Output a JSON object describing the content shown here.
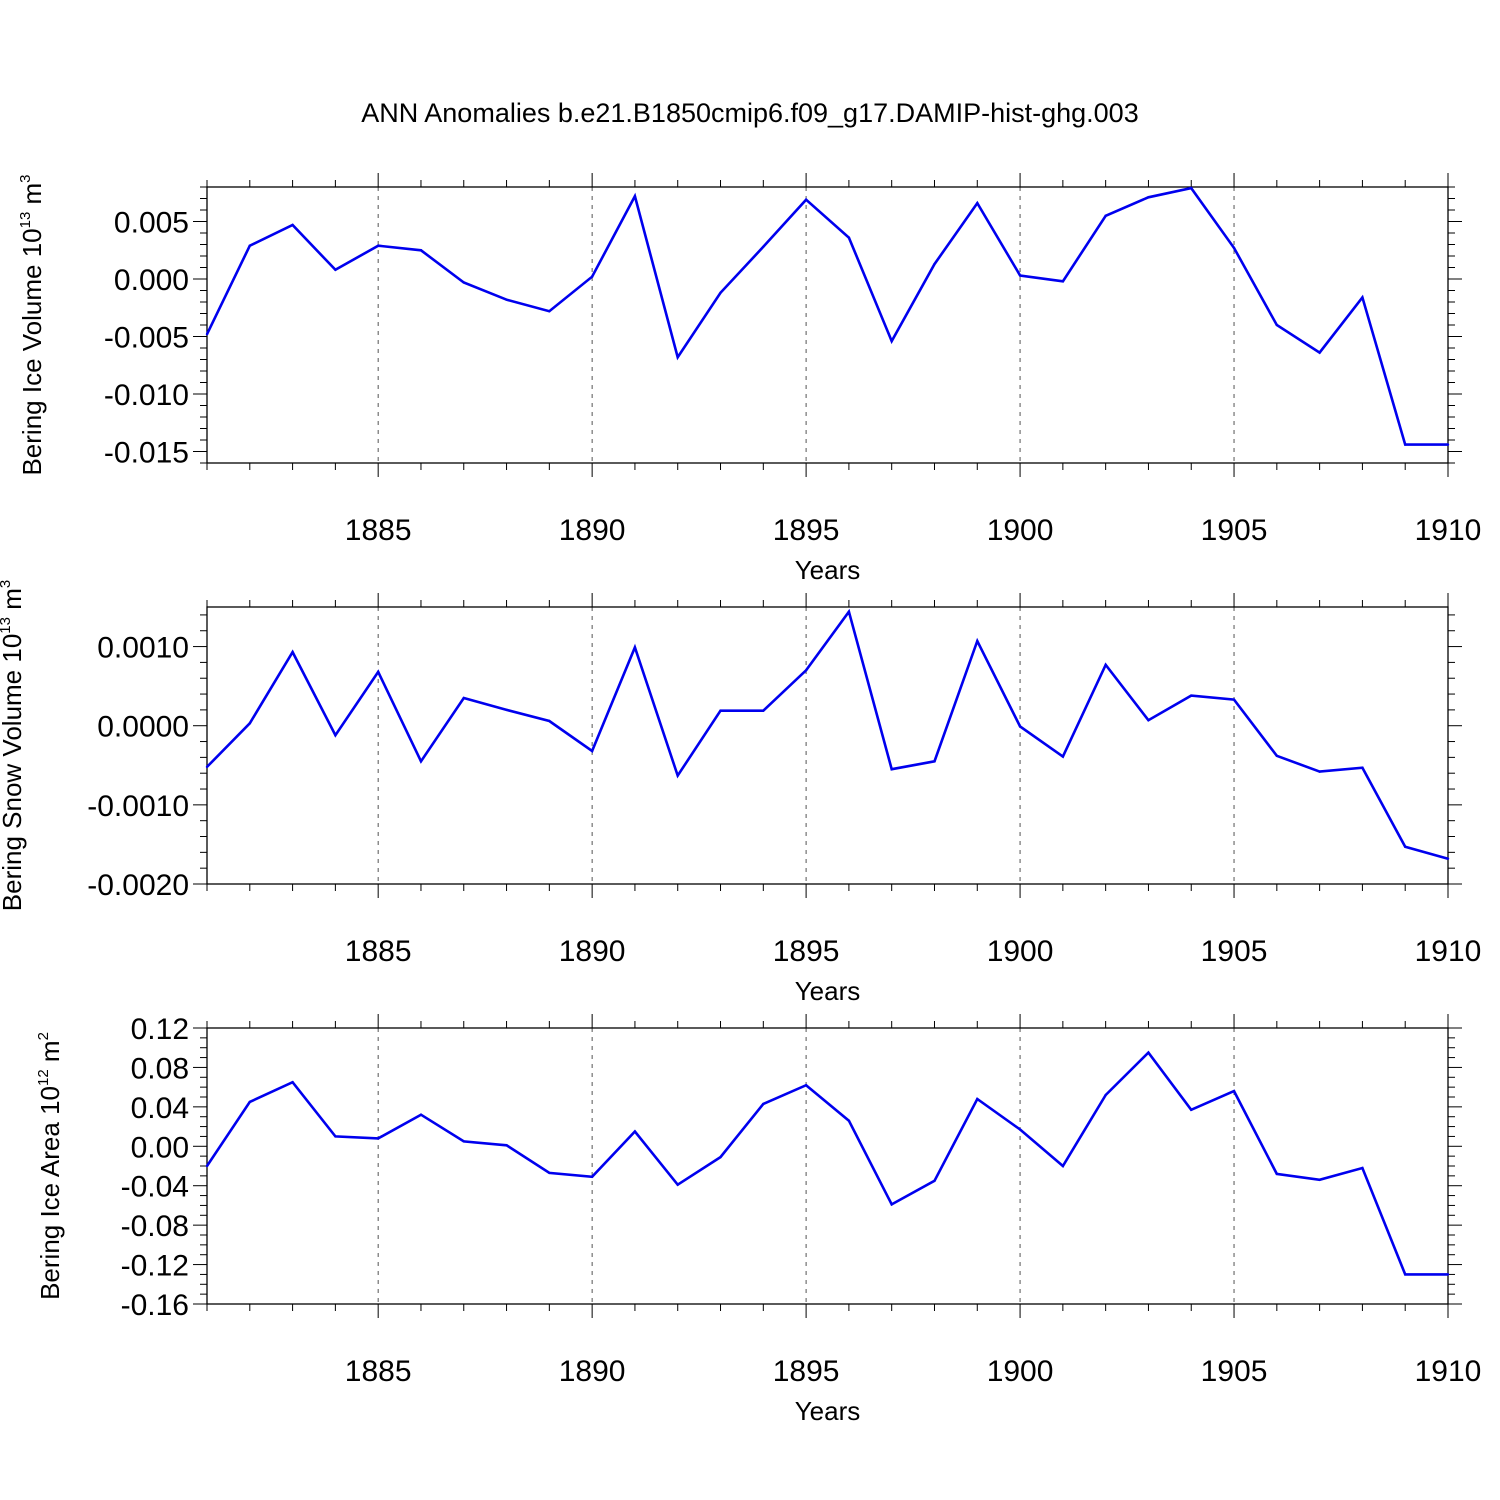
{
  "title": "ANN Anomalies b.e21.B1850cmip6.f09_g17.DAMIP-hist-ghg.003",
  "colors": {
    "line": "#0000ee",
    "axis": "#000000",
    "grid": "#555555",
    "background": "#ffffff"
  },
  "chart_data": [
    {
      "type": "line",
      "title": "ANN Anomalies b.e21.B1850cmip6.f09_g17.DAMIP-hist-ghg.003",
      "ylabel": {
        "text": "Bering Ice Volume 10",
        "exp": "13",
        "unit": " m",
        "unit_exp": "3"
      },
      "xlabel": "Years",
      "xlim": [
        1881,
        1910
      ],
      "ylim": [
        -0.016,
        0.008
      ],
      "yticks": [
        -0.015,
        -0.01,
        -0.005,
        0.0,
        0.005
      ],
      "yticklabels": [
        "-0.015",
        "-0.010",
        "-0.005",
        "0.000",
        "0.005"
      ],
      "yminor_step": 0.001,
      "xticks": [
        1885,
        1890,
        1895,
        1900,
        1905,
        1910
      ],
      "xticklabels": [
        "1885",
        "1890",
        "1895",
        "1900",
        "1905",
        "1910"
      ],
      "grid": "vertical dashed at major x ticks",
      "x": [
        1881,
        1882,
        1883,
        1884,
        1885,
        1886,
        1887,
        1888,
        1889,
        1890,
        1891,
        1892,
        1893,
        1894,
        1895,
        1896,
        1897,
        1898,
        1899,
        1900,
        1901,
        1902,
        1903,
        1904,
        1905,
        1906,
        1907,
        1908,
        1909,
        1910
      ],
      "y": [
        -0.0048,
        0.0029,
        0.0047,
        0.0008,
        0.0029,
        0.0025,
        -0.0003,
        -0.0018,
        -0.0028,
        0.0002,
        0.0072,
        -0.0068,
        -0.0012,
        0.0028,
        0.0069,
        0.0036,
        -0.0054,
        0.0013,
        0.0066,
        0.0003,
        -0.0002,
        0.0055,
        0.0071,
        0.0079,
        0.0027,
        -0.004,
        -0.0064,
        -0.0016,
        -0.0144,
        -0.0144
      ]
    },
    {
      "type": "line",
      "ylabel": {
        "text": "Bering Snow Volume 10",
        "exp": "13",
        "unit": " m",
        "unit_exp": "3"
      },
      "xlabel": "Years",
      "xlim": [
        1881,
        1910
      ],
      "ylim": [
        -0.002,
        0.0015
      ],
      "yticks": [
        -0.002,
        -0.001,
        0.0,
        0.001
      ],
      "yticklabels": [
        "-0.0020",
        "-0.0010",
        "0.0000",
        "0.0010"
      ],
      "yminor_step": 0.0002,
      "xticks": [
        1885,
        1890,
        1895,
        1900,
        1905,
        1910
      ],
      "xticklabels": [
        "1885",
        "1890",
        "1895",
        "1900",
        "1905",
        "1910"
      ],
      "grid": "vertical dashed at major x ticks",
      "x": [
        1881,
        1882,
        1883,
        1884,
        1885,
        1886,
        1887,
        1888,
        1889,
        1890,
        1891,
        1892,
        1893,
        1894,
        1895,
        1896,
        1897,
        1898,
        1899,
        1900,
        1901,
        1902,
        1903,
        1904,
        1905,
        1906,
        1907,
        1908,
        1909,
        1910
      ],
      "y": [
        -0.00052,
        3e-05,
        0.00093,
        -0.00012,
        0.00068,
        -0.00045,
        0.00035,
        0.0002,
        6e-05,
        -0.00032,
        0.00099,
        -0.00063,
        0.00019,
        0.00019,
        0.0007,
        0.00144,
        -0.00055,
        -0.00045,
        0.00107,
        -1e-05,
        -0.00039,
        0.00077,
        7e-05,
        0.00038,
        0.00033,
        -0.00038,
        -0.00058,
        -0.00053,
        -0.00153,
        -0.00168
      ]
    },
    {
      "type": "line",
      "ylabel": {
        "text": "Bering Ice Area 10",
        "exp": "12",
        "unit": " m",
        "unit_exp": "2"
      },
      "xlabel": "Years",
      "xlim": [
        1881,
        1910
      ],
      "ylim": [
        -0.16,
        0.12
      ],
      "yticks": [
        -0.16,
        -0.12,
        -0.08,
        -0.04,
        0.0,
        0.04,
        0.08,
        0.12
      ],
      "yticklabels": [
        "-0.16",
        "-0.12",
        "-0.08",
        "-0.04",
        "0.00",
        "0.04",
        "0.08",
        "0.12"
      ],
      "yminor_step": 0.01,
      "xticks": [
        1885,
        1890,
        1895,
        1900,
        1905,
        1910
      ],
      "xticklabels": [
        "1885",
        "1890",
        "1895",
        "1900",
        "1905",
        "1910"
      ],
      "grid": "vertical dashed at major x ticks",
      "x": [
        1881,
        1882,
        1883,
        1884,
        1885,
        1886,
        1887,
        1888,
        1889,
        1890,
        1891,
        1892,
        1893,
        1894,
        1895,
        1896,
        1897,
        1898,
        1899,
        1900,
        1901,
        1902,
        1903,
        1904,
        1905,
        1906,
        1907,
        1908,
        1909,
        1910
      ],
      "y": [
        -0.02,
        0.045,
        0.065,
        0.01,
        0.008,
        0.032,
        0.005,
        0.001,
        -0.027,
        -0.031,
        0.015,
        -0.039,
        -0.011,
        0.043,
        0.062,
        0.026,
        -0.059,
        -0.035,
        0.048,
        0.017,
        -0.02,
        0.052,
        0.095,
        0.037,
        0.056,
        -0.028,
        -0.034,
        -0.022,
        -0.13,
        -0.13
      ]
    }
  ]
}
